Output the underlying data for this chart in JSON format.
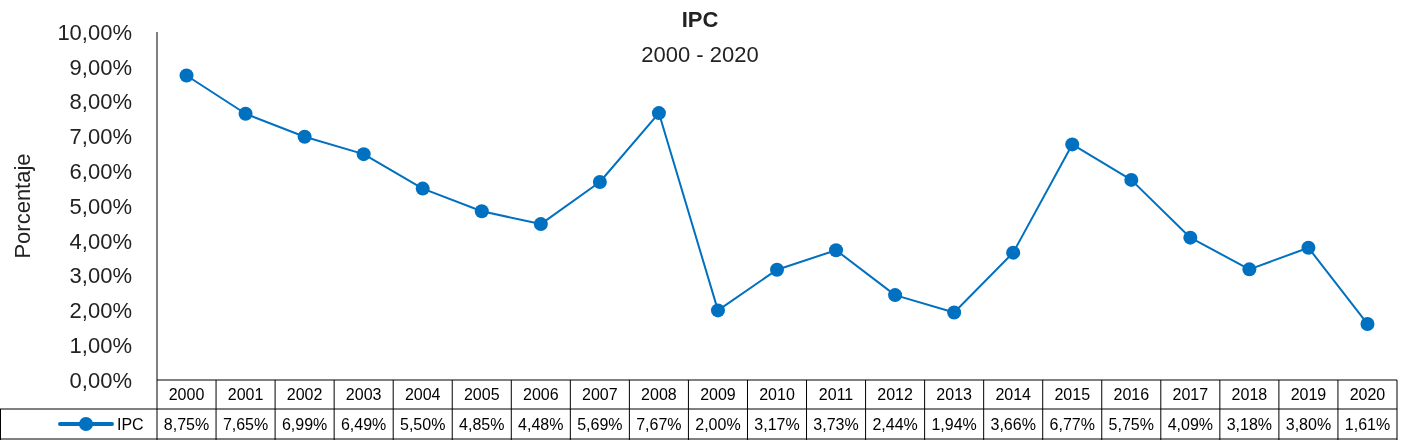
{
  "chart_data": {
    "type": "line",
    "title": "IPC",
    "subtitle": "2000 - 2020",
    "ylabel": "Porcentaje",
    "categories": [
      "2000",
      "2001",
      "2002",
      "2003",
      "2004",
      "2005",
      "2006",
      "2007",
      "2008",
      "2009",
      "2010",
      "2011",
      "2012",
      "2013",
      "2014",
      "2015",
      "2016",
      "2017",
      "2018",
      "2019",
      "2020"
    ],
    "series": [
      {
        "name": "IPC",
        "color": "#0070c0",
        "values": [
          8.75,
          7.65,
          6.99,
          6.49,
          5.5,
          4.85,
          4.48,
          5.69,
          7.67,
          2.0,
          3.17,
          3.73,
          2.44,
          1.94,
          3.66,
          6.77,
          5.75,
          4.09,
          3.18,
          3.8,
          1.61
        ],
        "value_labels": [
          "8,75%",
          "7,65%",
          "6,99%",
          "6,49%",
          "5,50%",
          "4,85%",
          "4,48%",
          "5,69%",
          "7,67%",
          "2,00%",
          "3,17%",
          "3,73%",
          "2,44%",
          "1,94%",
          "3,66%",
          "6,77%",
          "5,75%",
          "4,09%",
          "3,18%",
          "3,80%",
          "1,61%"
        ]
      }
    ],
    "ylim": [
      0,
      10
    ],
    "yticks": [
      {
        "value": 0,
        "label": "0,00%"
      },
      {
        "value": 1,
        "label": "1,00%"
      },
      {
        "value": 2,
        "label": "2,00%"
      },
      {
        "value": 3,
        "label": "3,00%"
      },
      {
        "value": 4,
        "label": "4,00%"
      },
      {
        "value": 5,
        "label": "5,00%"
      },
      {
        "value": 6,
        "label": "6,00%"
      },
      {
        "value": 7,
        "label": "7,00%"
      },
      {
        "value": 8,
        "label": "8,00%"
      },
      {
        "value": 9,
        "label": "9,00%"
      },
      {
        "value": 10,
        "label": "10,00%"
      }
    ],
    "grid": false,
    "legend": "bottom",
    "marker": "circle",
    "line_style": "solid"
  }
}
